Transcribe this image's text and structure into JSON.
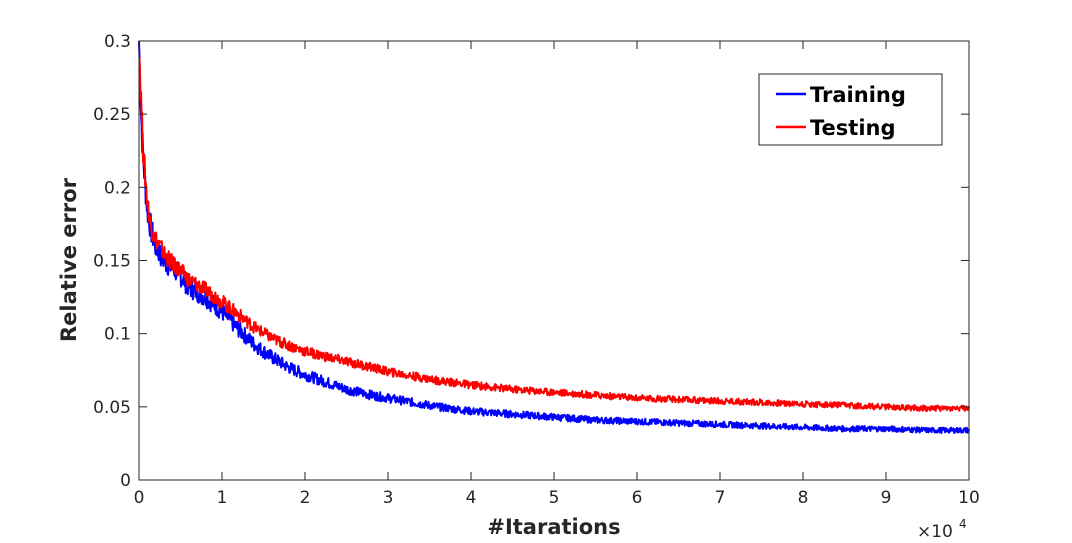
{
  "chart_data": {
    "type": "line",
    "xlabel": "#Itarations",
    "ylabel": "Relative error",
    "x_exponent_label": "×10",
    "x_exponent_power": "4",
    "xlim": [
      0,
      100000
    ],
    "ylim": [
      0,
      0.3
    ],
    "xticks": [
      0,
      10000,
      20000,
      30000,
      40000,
      50000,
      60000,
      70000,
      80000,
      90000,
      100000
    ],
    "xtick_labels": [
      "0",
      "1",
      "2",
      "3",
      "4",
      "5",
      "6",
      "7",
      "8",
      "9",
      "10"
    ],
    "yticks": [
      0,
      0.05,
      0.1,
      0.15,
      0.2,
      0.25,
      0.3
    ],
    "ytick_labels": [
      "0",
      "0.05",
      "0.1",
      "0.15",
      "0.2",
      "0.25",
      "0.3"
    ],
    "grid": false,
    "box": true,
    "legend_position": "top-right",
    "series": [
      {
        "name": "Training",
        "color": "#0000ff",
        "x": [
          0,
          250,
          500,
          1000,
          1500,
          2000,
          3000,
          4000,
          5000,
          6000,
          8000,
          10000,
          12000,
          14000,
          16000,
          18000,
          20000,
          22000,
          25000,
          28000,
          30000,
          33000,
          36000,
          40000,
          45000,
          50000,
          55000,
          60000,
          65000,
          70000,
          75000,
          80000,
          85000,
          90000,
          95000,
          100000
        ],
        "y": [
          0.3,
          0.25,
          0.22,
          0.185,
          0.17,
          0.16,
          0.15,
          0.145,
          0.14,
          0.132,
          0.125,
          0.115,
          0.103,
          0.092,
          0.084,
          0.077,
          0.072,
          0.068,
          0.062,
          0.058,
          0.056,
          0.053,
          0.05,
          0.047,
          0.045,
          0.043,
          0.041,
          0.04,
          0.039,
          0.038,
          0.037,
          0.036,
          0.035,
          0.035,
          0.034,
          0.034
        ]
      },
      {
        "name": "Testing",
        "color": "#ff0000",
        "x": [
          0,
          250,
          500,
          1000,
          1500,
          2000,
          3000,
          4000,
          5000,
          6000,
          8000,
          10000,
          12000,
          14000,
          16000,
          18000,
          20000,
          22000,
          25000,
          28000,
          30000,
          33000,
          36000,
          40000,
          45000,
          50000,
          55000,
          60000,
          65000,
          70000,
          75000,
          80000,
          85000,
          90000,
          95000,
          100000
        ],
        "y": [
          0.3,
          0.26,
          0.225,
          0.19,
          0.172,
          0.165,
          0.155,
          0.148,
          0.143,
          0.137,
          0.13,
          0.122,
          0.113,
          0.104,
          0.097,
          0.092,
          0.088,
          0.085,
          0.081,
          0.077,
          0.074,
          0.071,
          0.068,
          0.065,
          0.062,
          0.06,
          0.058,
          0.056,
          0.055,
          0.054,
          0.053,
          0.052,
          0.051,
          0.05,
          0.049,
          0.049
        ]
      }
    ]
  }
}
